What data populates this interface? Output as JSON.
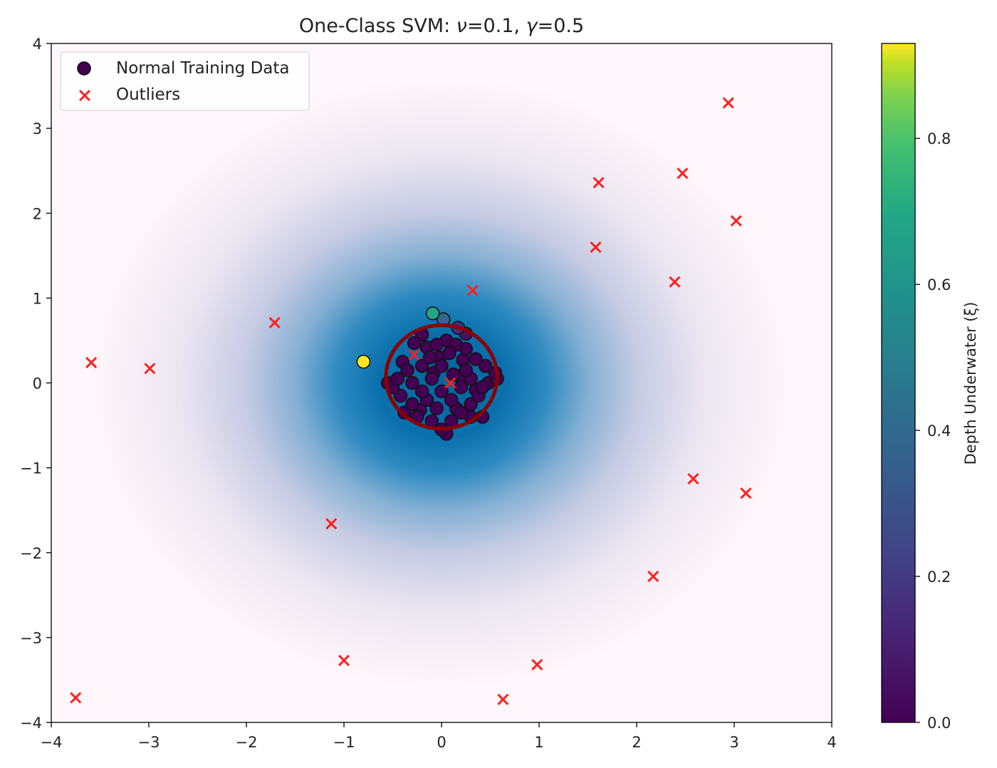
{
  "chart_data": {
    "type": "scatter",
    "title_prefix": "One-Class SVM: ",
    "title_nu_symbol": "ν",
    "title_nu_value": "=0.1, ",
    "title_gamma_symbol": "γ",
    "title_gamma_value": "=0.5",
    "xlim": [
      -4,
      4
    ],
    "ylim": [
      -4,
      4
    ],
    "xticks": [
      "−4",
      "−3",
      "−2",
      "−1",
      "0",
      "1",
      "2",
      "3",
      "4"
    ],
    "yticks": [
      "−4",
      "−3",
      "−2",
      "−1",
      "0",
      "1",
      "2",
      "3",
      "4"
    ],
    "grid": false,
    "legend_placement": "top-left",
    "legend": [
      {
        "label": "Normal Training Data",
        "marker": "circle",
        "color": "#440154"
      },
      {
        "label": "Outliers",
        "marker": "x",
        "color": "#ff2020"
      }
    ],
    "background": {
      "colormap": "PuBu",
      "center": [
        0,
        0
      ],
      "description_value": "decision function"
    },
    "decision_boundary": {
      "color": "#8b0000",
      "center": [
        0.0,
        0.07
      ],
      "radius_x": 0.57,
      "radius_y": 0.61
    },
    "colorbar": {
      "label": "Depth Underwater (ξ)",
      "colormap": "viridis",
      "range": [
        0.0,
        0.93
      ],
      "ticks": [
        "0.0",
        "0.2",
        "0.4",
        "0.6",
        "0.8"
      ],
      "tick_values": [
        0.0,
        0.2,
        0.4,
        0.6,
        0.8
      ]
    },
    "normal_points": [
      [
        -0.8,
        0.25,
        0.93
      ],
      [
        -0.09,
        0.82,
        0.55
      ],
      [
        0.02,
        0.75,
        0.3
      ],
      [
        0.17,
        0.65,
        0.12
      ],
      [
        0.25,
        0.58,
        0.05
      ],
      [
        -0.28,
        0.47,
        0
      ],
      [
        -0.2,
        0.57,
        0
      ],
      [
        -0.12,
        0.3,
        0
      ],
      [
        -0.35,
        0.15,
        0
      ],
      [
        -0.45,
        0.05,
        0
      ],
      [
        -0.5,
        -0.05,
        0
      ],
      [
        -0.55,
        0.0,
        0
      ],
      [
        -0.42,
        -0.15,
        0
      ],
      [
        -0.3,
        -0.25,
        0
      ],
      [
        -0.2,
        -0.1,
        0
      ],
      [
        -0.1,
        0.05,
        0
      ],
      [
        0,
        0.2,
        0
      ],
      [
        0.08,
        0.35,
        0
      ],
      [
        0.15,
        0.45,
        0
      ],
      [
        0.25,
        0.4,
        0
      ],
      [
        0.35,
        0.28,
        0
      ],
      [
        0.45,
        0.2,
        0
      ],
      [
        0.55,
        0.12,
        0
      ],
      [
        0.57,
        0.05,
        0
      ],
      [
        0.42,
        -0.05,
        0
      ],
      [
        0.38,
        -0.15,
        0
      ],
      [
        0.3,
        -0.25,
        0
      ],
      [
        0.42,
        -0.4,
        0
      ],
      [
        0.2,
        -0.35,
        0
      ],
      [
        0.1,
        -0.45,
        0
      ],
      [
        0.0,
        -0.55,
        0
      ],
      [
        0.05,
        -0.6,
        0
      ],
      [
        -0.1,
        -0.45,
        0
      ],
      [
        -0.25,
        -0.4,
        0
      ],
      [
        -0.38,
        -0.35,
        0
      ],
      [
        -0.15,
        -0.2,
        0
      ],
      [
        0.0,
        -0.1,
        0
      ],
      [
        0.1,
        -0.2,
        0
      ],
      [
        0.2,
        -0.05,
        0
      ],
      [
        0.25,
        0.15,
        0
      ],
      [
        0.12,
        0.1,
        0
      ],
      [
        -0.05,
        0.45,
        0
      ],
      [
        -0.2,
        0.2,
        0
      ],
      [
        -0.3,
        0.0,
        0
      ],
      [
        0.3,
        0.05,
        0
      ],
      [
        0.15,
        -0.3,
        0
      ],
      [
        -0.05,
        -0.3,
        0
      ],
      [
        0.22,
        0.27,
        0
      ],
      [
        0.05,
        0.5,
        0
      ],
      [
        -0.15,
        0.42,
        0
      ],
      [
        0.3,
        -0.4,
        0
      ],
      [
        -0.08,
        0.12,
        0
      ],
      [
        0.48,
        0.0,
        0
      ],
      [
        -0.4,
        0.25,
        0
      ],
      [
        -0.22,
        -0.32,
        0
      ],
      [
        0.35,
        -0.08,
        0
      ],
      [
        -0.02,
        0.3,
        0
      ],
      [
        0.18,
        0.08,
        0
      ]
    ],
    "outliers": [
      [
        2.94,
        3.3
      ],
      [
        2.47,
        2.47
      ],
      [
        1.61,
        2.36
      ],
      [
        3.02,
        1.91
      ],
      [
        1.58,
        1.6
      ],
      [
        2.39,
        1.19
      ],
      [
        0.32,
        1.09
      ],
      [
        -1.71,
        0.71
      ],
      [
        -3.59,
        0.24
      ],
      [
        -2.99,
        0.17
      ],
      [
        -0.28,
        0.33
      ],
      [
        0.09,
        0.0
      ],
      [
        2.58,
        -1.13
      ],
      [
        3.12,
        -1.3
      ],
      [
        -1.13,
        -1.66
      ],
      [
        2.17,
        -2.28
      ],
      [
        -1.0,
        -3.27
      ],
      [
        0.98,
        -3.32
      ],
      [
        -3.75,
        -3.71
      ],
      [
        0.63,
        -3.73
      ]
    ]
  }
}
